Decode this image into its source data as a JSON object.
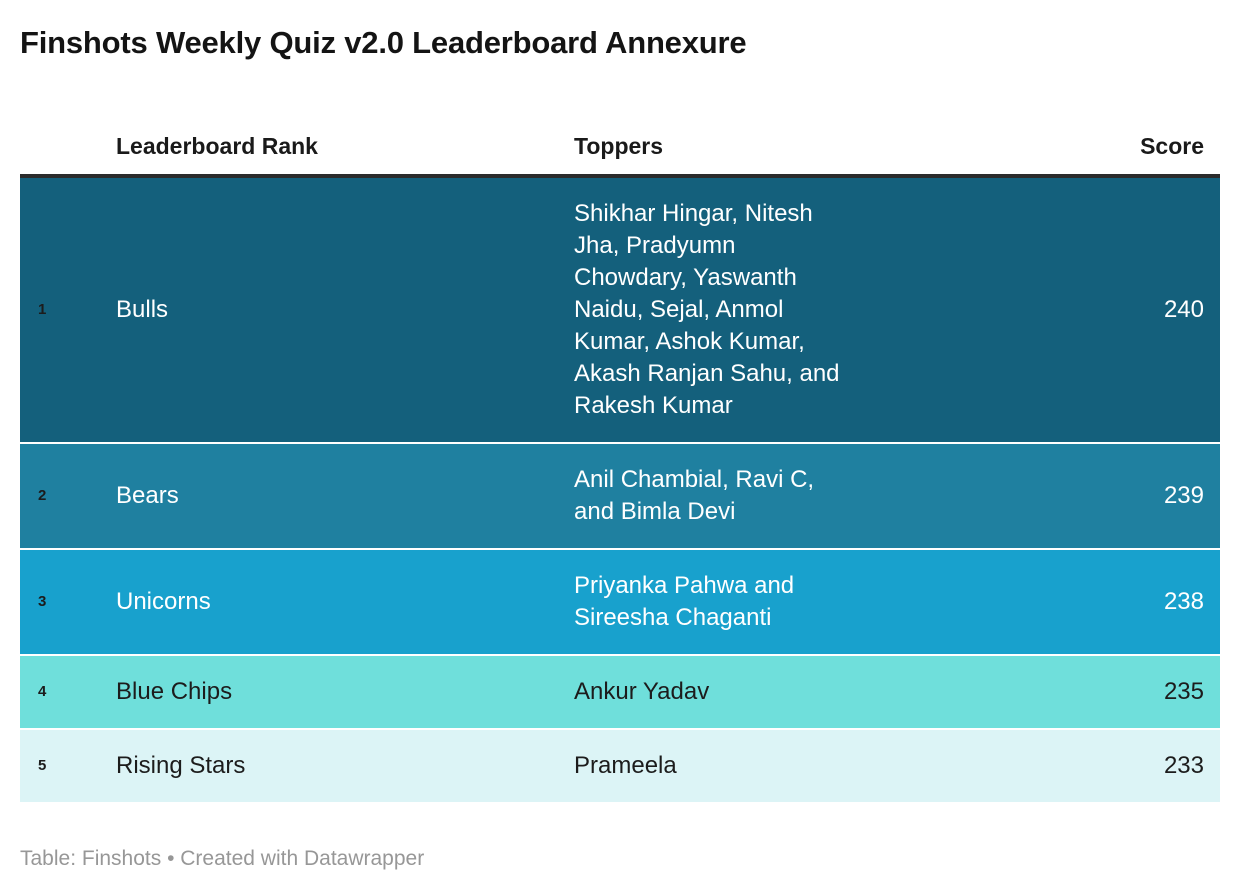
{
  "title": "Finshots Weekly Quiz v2.0 Leaderboard Annexure",
  "footer": "Table: Finshots • Created with Datawrapper",
  "table": {
    "headers": {
      "rank_team": "Leaderboard Rank",
      "toppers": "Toppers",
      "score": "Score"
    },
    "rows": [
      {
        "rank": "1",
        "team": "Bulls",
        "toppers": "Shikhar Hingar, Nitesh Jha, Pradyumn Chowdary, Yaswanth Naidu, Sejal, Anmol Kumar, Ashok Kumar, Akash Ranjan Sahu, and Rakesh Kumar",
        "score": "240",
        "bg": "#14607c",
        "text_mode": "light"
      },
      {
        "rank": "2",
        "team": "Bears",
        "toppers": "Anil Chambial, Ravi C, and Bimla Devi",
        "score": "239",
        "bg": "#1f80a0",
        "text_mode": "light"
      },
      {
        "rank": "3",
        "team": "Unicorns",
        "toppers": "Priyanka Pahwa and Sireesha Chaganti",
        "score": "238",
        "bg": "#18a1cd",
        "text_mode": "light"
      },
      {
        "rank": "4",
        "team": "Blue Chips",
        "toppers": "Ankur Yadav",
        "score": "235",
        "bg": "#6fdfdb",
        "text_mode": "dark"
      },
      {
        "rank": "5",
        "team": "Rising Stars",
        "toppers": "Prameela",
        "score": "233",
        "bg": "#dcf4f6",
        "text_mode": "dark"
      }
    ]
  },
  "colors": {
    "title_text": "#141414",
    "header_rule": "#2b2b2b",
    "footer_text": "#979797",
    "light_text": "#ffffff",
    "dark_text": "#1c1c1c",
    "row_gap": "#ffffff"
  },
  "chart_data": {
    "type": "table",
    "title": "Finshots Weekly Quiz v2.0 Leaderboard Annexure",
    "columns": [
      "Leaderboard Rank",
      "Toppers",
      "Score"
    ],
    "rows": [
      [
        "1",
        "Bulls",
        "Shikhar Hingar, Nitesh Jha, Pradyumn Chowdary, Yaswanth Naidu, Sejal, Anmol Kumar, Ashok Kumar, Akash Ranjan Sahu, and Rakesh Kumar",
        240
      ],
      [
        "2",
        "Bears",
        "Anil Chambial, Ravi C, and Bimla Devi",
        239
      ],
      [
        "3",
        "Unicorns",
        "Priyanka Pahwa and Sireesha Chaganti",
        238
      ],
      [
        "4",
        "Blue Chips",
        "Ankur Yadav",
        235
      ],
      [
        "5",
        "Rising Stars",
        "Prameela",
        233
      ]
    ]
  }
}
